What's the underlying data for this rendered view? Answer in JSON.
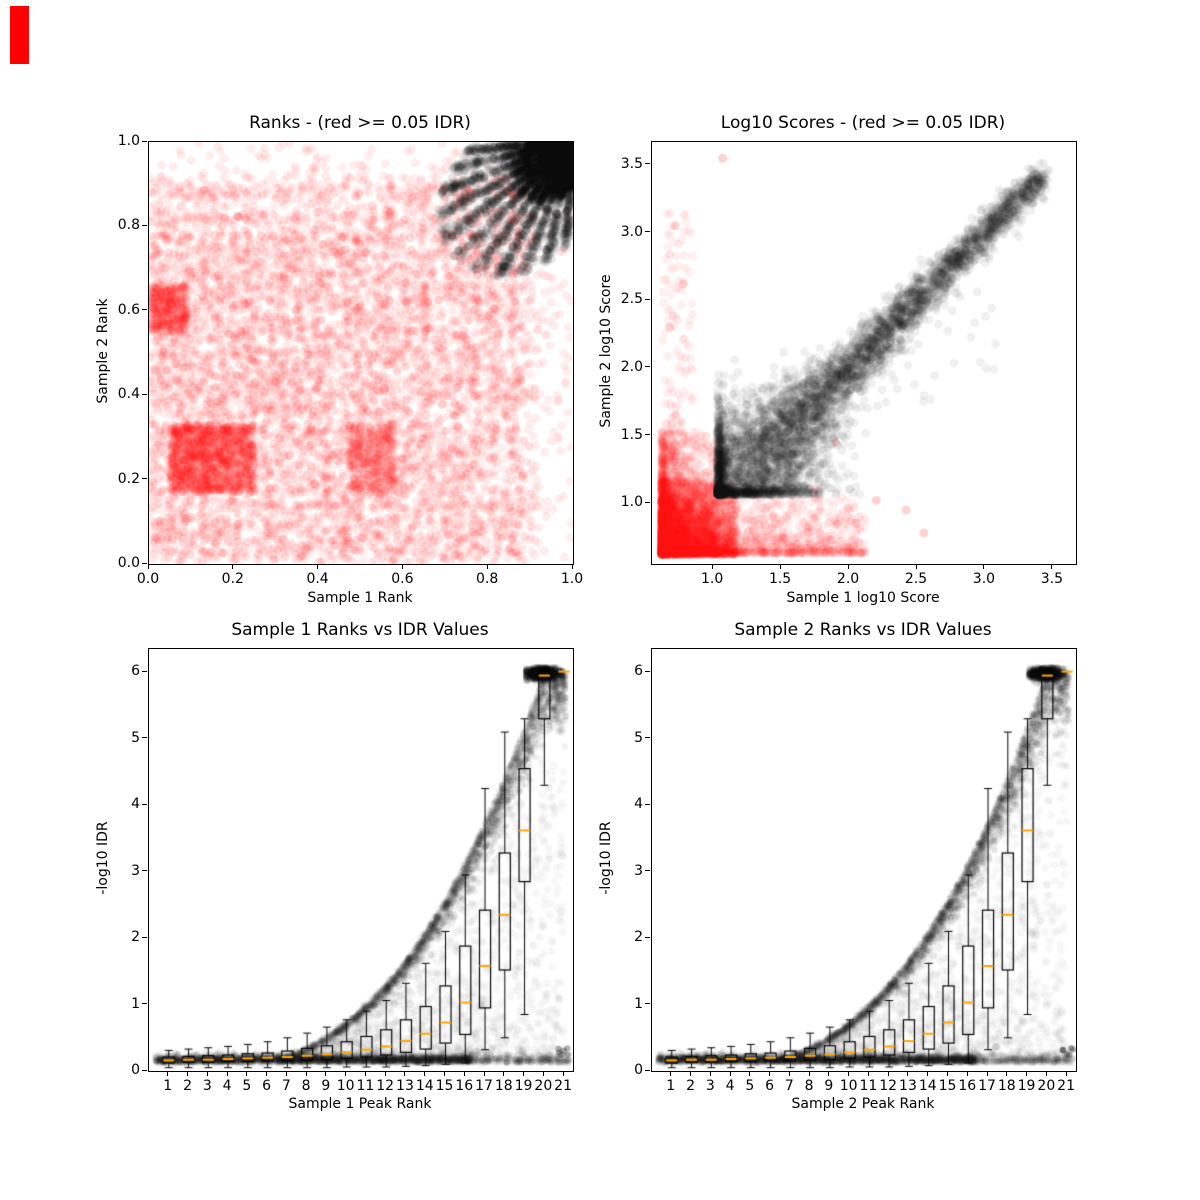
{
  "figure": {
    "background": "#ffffff",
    "stray_mark": {
      "color": "#ff0000",
      "note": "small solid red block in the extreme top-left corner of the figure"
    }
  },
  "palette": {
    "black": "#000000",
    "red": "#ff0000",
    "median_orange": "#ffa500"
  },
  "chart_data": [
    {
      "id": "ranks",
      "type": "scatter",
      "title": "Ranks - (red >= 0.05 IDR)",
      "xlabel": "Sample 1 Rank",
      "ylabel": "Sample 2 Rank",
      "xlim": [
        0.0,
        1.0
      ],
      "ylim": [
        0.0,
        1.0
      ],
      "xticks": [
        "0.0",
        "0.2",
        "0.4",
        "0.6",
        "0.8",
        "1.0"
      ],
      "yticks": [
        "0.0",
        "0.2",
        "0.4",
        "0.6",
        "0.8",
        "1.0"
      ],
      "grid": false,
      "legend_position": "none",
      "series": [
        {
          "name": "irreproducible_peaks",
          "legend": "IDR >= 0.05",
          "color": "#ff0000",
          "alpha": 0.07,
          "marker_px": 4.5,
          "n": 9060,
          "shape": "plaid pattern of horizontal/vertical bands of tied ranks over the whole unit square; solid blocks near (0.05-0.25, 0.17-0.33), (0-0.09, 0.55-0.66), (0.47-0.58, 0.17-0.33); sparse halo up to the top and right edges",
          "band_x": [
            0.02,
            0.055,
            0.09,
            0.13,
            0.165,
            0.2,
            0.24,
            0.275,
            0.31,
            0.35,
            0.385,
            0.42,
            0.46,
            0.5,
            0.535,
            0.57,
            0.61,
            0.65,
            0.69,
            0.73,
            0.77,
            0.815,
            0.86
          ],
          "band_y": [
            0.03,
            0.065,
            0.1,
            0.14,
            0.175,
            0.215,
            0.25,
            0.285,
            0.32,
            0.36,
            0.395,
            0.43,
            0.47,
            0.505,
            0.545,
            0.58,
            0.62,
            0.655,
            0.695,
            0.735,
            0.775,
            0.82,
            0.88
          ],
          "components": [
            {
              "kind": "grid",
              "n": 2400
            },
            {
              "kind": "h-bands",
              "n": 1800
            },
            {
              "kind": "v-bands",
              "n": 1800
            },
            {
              "kind": "uniform",
              "n": 1000
            },
            {
              "kind": "block",
              "n": 1300,
              "rect": [
                0.05,
                0.17,
                0.25,
                0.33
              ]
            },
            {
              "kind": "block",
              "n": 380,
              "rect": [
                0.0,
                0.55,
                0.09,
                0.66
              ]
            },
            {
              "kind": "block",
              "n": 380,
              "rect": [
                0.47,
                0.17,
                0.58,
                0.33
              ]
            }
          ]
        },
        {
          "name": "reproducible_peaks",
          "legend": "IDR < 0.05",
          "color": "#000000",
          "alpha": 0.09,
          "marker_px": 4.5,
          "n": 7000,
          "shape": "dense fan radiating from corner (1,1), reaching ~(0.72,0.72) on the diagonal and ~0.77 along the top/right edges, with faint radial finger striations",
          "components": [
            {
              "kind": "corner-fan",
              "n": 6200,
              "reach": 0.3,
              "fingers": 11
            },
            {
              "kind": "corner-core",
              "n": 800,
              "reach": 0.054
            }
          ]
        }
      ]
    },
    {
      "id": "scores",
      "type": "scatter",
      "title": "Log10 Scores - (red >= 0.05 IDR)",
      "xlabel": "Sample 1 log10 Score",
      "ylabel": "Sample 2 log10 Score",
      "xlim": [
        0.55,
        3.67
      ],
      "ylim": [
        0.55,
        3.67
      ],
      "xticks": [
        "1.0",
        "1.5",
        "2.0",
        "2.5",
        "3.0",
        "3.5"
      ],
      "yticks": [
        "1.0",
        "1.5",
        "2.0",
        "2.5",
        "3.0",
        "3.5"
      ],
      "grid": false,
      "legend_position": "none",
      "series": [
        {
          "name": "irreproducible_peaks",
          "legend": "IDR >= 0.05",
          "color": "#ff0000",
          "alpha": 0.06,
          "marker_px": 4.5,
          "n": 5931,
          "shape": "dense block in the lower-left corner (0.62-1.15 on both axes), thinning tail along the bottom out to x~2.1, sparse pale column up the left side to y~3.1",
          "components": [
            {
              "kind": "corner-block",
              "n": 2600,
              "origin": 0.62,
              "spread": 0.55
            },
            {
              "kind": "bottom-tail",
              "n": 1700,
              "xspread": 1.5,
              "yspread": 0.42
            },
            {
              "kind": "left-column",
              "n": 1500,
              "xspread": 0.42,
              "yspread": 0.9
            },
            {
              "kind": "tall-sparse",
              "n": 120,
              "x": [
                0.63,
                0.85
              ],
              "y": [
                1.2,
                3.15
              ]
            }
          ],
          "outliers": [
            [
              1.07,
              3.55
            ],
            [
              0.72,
              3.05
            ],
            [
              0.78,
              2.62
            ],
            [
              0.68,
              2.3
            ],
            [
              2.42,
              0.95
            ],
            [
              2.2,
              1.02
            ],
            [
              1.9,
              1.45
            ],
            [
              2.55,
              0.78
            ],
            [
              1.62,
              0.7
            ],
            [
              1.75,
              1.1
            ],
            [
              2.05,
              0.85
            ]
          ]
        },
        {
          "name": "reproducible_peaks",
          "legend": "IDR < 0.05",
          "color": "#000000",
          "alpha": 0.06,
          "marker_px": 4.5,
          "n": 5670,
          "shape": "elongated diagonal cloud from (1.1,1.1) to (3.45,3.5); broad at the low end (x 1.05-1.9) with a sharp left edge near x=1.05, narrowing toward the top",
          "components": [
            {
              "kind": "diag-cloud",
              "n": 5600,
              "start": 1.08,
              "end": 3.42
            },
            {
              "kind": "below-diag-sparse",
              "n": 70
            }
          ]
        }
      ]
    },
    {
      "id": "idr1",
      "type": "scatter+boxplot",
      "title": "Sample 1 Ranks vs IDR Values",
      "xlabel": "Sample 1 Peak Rank",
      "ylabel": "-log10 IDR",
      "xlim": [
        0.0,
        21.45
      ],
      "ylim": [
        0.0,
        6.35
      ],
      "xticks": [
        "1",
        "2",
        "3",
        "4",
        "5",
        "6",
        "7",
        "8",
        "9",
        "10",
        "11",
        "12",
        "13",
        "14",
        "15",
        "16",
        "17",
        "18",
        "19",
        "20",
        "21"
      ],
      "yticks": [
        "0",
        "1",
        "2",
        "3",
        "4",
        "5",
        "6"
      ],
      "grid": false,
      "scatter": {
        "color": "#000000",
        "alpha": 0.055,
        "marker_px": 3.2,
        "n": 8206,
        "envelope": {
          "formula": "y = 6*((x-2)/18)^2.6 capped at 6",
          "x0": 2,
          "scale": 18,
          "exp": 2.6,
          "ymax": 6
        },
        "components": [
          {
            "kind": "low-band",
            "n": 3000,
            "y_center": 0.16,
            "x": [
              0.3,
              16.3
            ]
          },
          {
            "kind": "low-band-tail",
            "n": 350,
            "x": [
              16,
              21.3
            ]
          },
          {
            "kind": "envelope-arm",
            "n": 2600,
            "x": [
              6.5,
              21.1
            ]
          },
          {
            "kind": "haze",
            "n": 1500
          },
          {
            "kind": "cap",
            "n": 750,
            "x": [
              19.1,
              20.9
            ],
            "y": [
              5.8,
              6.07
            ]
          },
          {
            "kind": "stray-right",
            "n": 6,
            "x": [
              20.7,
              21.3
            ],
            "y": [
              0.24,
              0.36
            ]
          }
        ]
      },
      "boxplot": {
        "positions": [
          1,
          2,
          3,
          4,
          5,
          6,
          7,
          8,
          9,
          10,
          11,
          12,
          13,
          14,
          15,
          16,
          17,
          18,
          19,
          20,
          21
        ],
        "box_color": "#000000",
        "median_color": "#ffa500",
        "box_width": 0.56,
        "stats": [
          [
            0.05,
            0.12,
            0.16,
            0.21,
            0.31
          ],
          [
            0.05,
            0.13,
            0.17,
            0.22,
            0.33
          ],
          [
            0.05,
            0.13,
            0.17,
            0.23,
            0.35
          ],
          [
            0.05,
            0.14,
            0.18,
            0.24,
            0.37
          ],
          [
            0.05,
            0.14,
            0.19,
            0.26,
            0.4
          ],
          [
            0.05,
            0.15,
            0.2,
            0.27,
            0.44
          ],
          [
            0.05,
            0.15,
            0.21,
            0.3,
            0.5
          ],
          [
            0.05,
            0.16,
            0.23,
            0.34,
            0.57
          ],
          [
            0.05,
            0.17,
            0.25,
            0.38,
            0.66
          ],
          [
            0.06,
            0.19,
            0.28,
            0.44,
            0.77
          ],
          [
            0.06,
            0.21,
            0.32,
            0.52,
            0.9
          ],
          [
            0.06,
            0.24,
            0.37,
            0.62,
            1.06
          ],
          [
            0.07,
            0.28,
            0.45,
            0.77,
            1.32
          ],
          [
            0.08,
            0.33,
            0.56,
            0.97,
            1.62
          ],
          [
            0.1,
            0.42,
            0.73,
            1.28,
            2.1
          ],
          [
            0.12,
            0.55,
            1.03,
            1.88,
            2.95
          ],
          [
            0.32,
            0.95,
            1.58,
            2.42,
            4.25
          ],
          [
            0.5,
            1.52,
            2.35,
            3.28,
            5.1
          ],
          [
            0.85,
            2.85,
            3.62,
            4.55,
            5.3
          ],
          [
            4.3,
            5.3,
            5.95,
            6.02,
            6.05
          ],
          [
            5.98,
            6.0,
            6.01,
            6.02,
            6.03
          ]
        ]
      }
    },
    {
      "id": "idr2",
      "type": "scatter+boxplot",
      "title": "Sample 2 Ranks vs IDR Values",
      "xlabel": "Sample 2 Peak Rank",
      "ylabel": "-log10 IDR",
      "xlim": [
        0.0,
        21.45
      ],
      "ylim": [
        0.0,
        6.35
      ],
      "xticks": [
        "1",
        "2",
        "3",
        "4",
        "5",
        "6",
        "7",
        "8",
        "9",
        "10",
        "11",
        "12",
        "13",
        "14",
        "15",
        "16",
        "17",
        "18",
        "19",
        "20",
        "21"
      ],
      "yticks": [
        "0",
        "1",
        "2",
        "3",
        "4",
        "5",
        "6"
      ],
      "grid": false,
      "scatter": {
        "color": "#000000",
        "alpha": 0.055,
        "marker_px": 3.2,
        "n": 8206,
        "envelope": {
          "formula": "y = 6*((x-2)/18)^2.6 capped at 6",
          "x0": 2,
          "scale": 18,
          "exp": 2.6,
          "ymax": 6
        },
        "components": [
          {
            "kind": "low-band",
            "n": 3000,
            "y_center": 0.16,
            "x": [
              0.3,
              16.3
            ]
          },
          {
            "kind": "low-band-tail",
            "n": 350,
            "x": [
              16,
              21.3
            ]
          },
          {
            "kind": "envelope-arm",
            "n": 2600,
            "x": [
              6.5,
              21.1
            ]
          },
          {
            "kind": "haze",
            "n": 1500
          },
          {
            "kind": "cap",
            "n": 750,
            "x": [
              19.1,
              20.9
            ],
            "y": [
              5.8,
              6.07
            ]
          },
          {
            "kind": "stray-right",
            "n": 6,
            "x": [
              20.7,
              21.3
            ],
            "y": [
              0.24,
              0.36
            ]
          }
        ]
      },
      "boxplot": {
        "positions": [
          1,
          2,
          3,
          4,
          5,
          6,
          7,
          8,
          9,
          10,
          11,
          12,
          13,
          14,
          15,
          16,
          17,
          18,
          19,
          20,
          21
        ],
        "box_color": "#000000",
        "median_color": "#ffa500",
        "box_width": 0.56,
        "stats": [
          [
            0.05,
            0.12,
            0.16,
            0.21,
            0.31
          ],
          [
            0.05,
            0.13,
            0.17,
            0.22,
            0.33
          ],
          [
            0.05,
            0.13,
            0.17,
            0.23,
            0.35
          ],
          [
            0.05,
            0.14,
            0.18,
            0.24,
            0.37
          ],
          [
            0.05,
            0.14,
            0.19,
            0.26,
            0.4
          ],
          [
            0.05,
            0.15,
            0.2,
            0.27,
            0.44
          ],
          [
            0.05,
            0.15,
            0.21,
            0.3,
            0.5
          ],
          [
            0.05,
            0.16,
            0.23,
            0.34,
            0.57
          ],
          [
            0.05,
            0.17,
            0.25,
            0.38,
            0.66
          ],
          [
            0.06,
            0.19,
            0.28,
            0.44,
            0.77
          ],
          [
            0.06,
            0.21,
            0.32,
            0.52,
            0.9
          ],
          [
            0.06,
            0.24,
            0.37,
            0.62,
            1.06
          ],
          [
            0.07,
            0.28,
            0.45,
            0.77,
            1.32
          ],
          [
            0.08,
            0.33,
            0.56,
            0.97,
            1.62
          ],
          [
            0.1,
            0.42,
            0.73,
            1.28,
            2.1
          ],
          [
            0.12,
            0.55,
            1.03,
            1.88,
            2.95
          ],
          [
            0.32,
            0.95,
            1.58,
            2.42,
            4.25
          ],
          [
            0.5,
            1.52,
            2.35,
            3.28,
            5.1
          ],
          [
            0.85,
            2.85,
            3.62,
            4.55,
            5.3
          ],
          [
            4.3,
            5.3,
            5.95,
            6.02,
            6.05
          ],
          [
            5.98,
            6.0,
            6.01,
            6.02,
            6.03
          ]
        ]
      }
    }
  ]
}
